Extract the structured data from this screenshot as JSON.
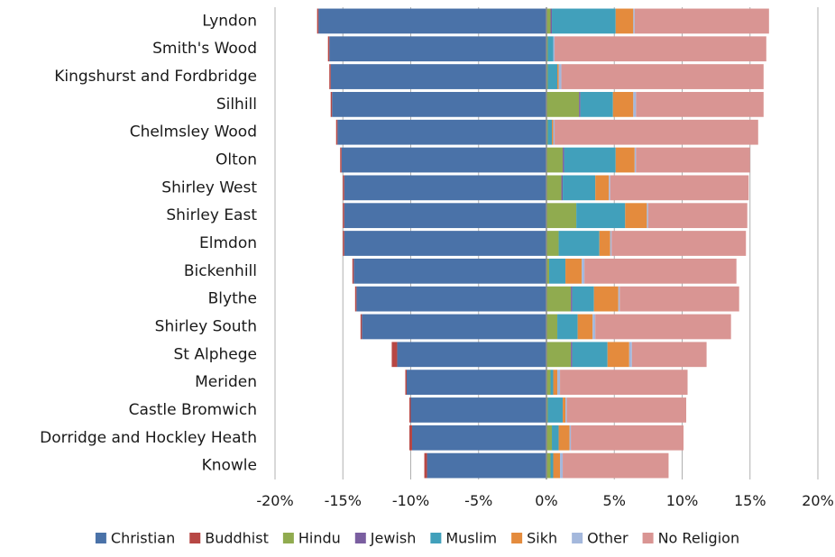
{
  "chart_data": {
    "type": "bar",
    "orientation": "horizontal",
    "stacked": true,
    "diverging": true,
    "title": "",
    "xlabel": "",
    "ylabel": "",
    "xlim": [
      -20,
      20
    ],
    "x_ticks": [
      -20,
      -15,
      -10,
      -5,
      0,
      5,
      10,
      15,
      20
    ],
    "x_tick_labels": [
      "-20%",
      "-15%",
      "-10%",
      "-5%",
      "0%",
      "5%",
      "10%",
      "15%",
      "20%"
    ],
    "grid": "vertical",
    "legend_position": "bottom",
    "categories": [
      "Lyndon",
      "Smith's Wood",
      "Kingshurst and Fordbridge",
      "Silhill",
      "Chelmsley Wood",
      "Olton",
      "Shirley West",
      "Shirley East",
      "Elmdon",
      "Bickenhill",
      "Blythe",
      "Shirley South",
      "St Alphege",
      "Meriden",
      "Castle Bromwich",
      "Dorridge and Hockley Heath",
      "Knowle"
    ],
    "series": [
      {
        "name": "Christian",
        "color": "#4a72a8",
        "side": "left",
        "values": [
          -16.8,
          -16.0,
          -15.9,
          -15.8,
          -15.4,
          -15.1,
          -14.9,
          -14.9,
          -14.9,
          -14.2,
          -14.0,
          -13.6,
          -11.0,
          -10.3,
          -10.0,
          -9.9,
          -8.8
        ]
      },
      {
        "name": "Buddhist",
        "color": "#b74744",
        "side": "left",
        "values": [
          -0.1,
          -0.1,
          -0.1,
          -0.1,
          -0.1,
          -0.1,
          -0.1,
          -0.1,
          -0.1,
          -0.1,
          -0.1,
          -0.1,
          -0.4,
          -0.1,
          -0.1,
          -0.2,
          -0.2
        ]
      },
      {
        "name": "Hindu",
        "color": "#90ab4f",
        "side": "right",
        "values": [
          0.3,
          0.1,
          0.1,
          2.4,
          0.1,
          1.2,
          1.1,
          2.2,
          0.9,
          0.2,
          1.8,
          0.8,
          1.8,
          0.3,
          0.1,
          0.4,
          0.3
        ]
      },
      {
        "name": "Jewish",
        "color": "#7a5ea0",
        "side": "right",
        "values": [
          0.1,
          0.0,
          0.0,
          0.1,
          0.0,
          0.1,
          0.1,
          0.0,
          0.0,
          0.0,
          0.1,
          0.0,
          0.1,
          0.0,
          0.0,
          0.0,
          0.0
        ]
      },
      {
        "name": "Muslim",
        "color": "#41a0bb",
        "side": "right",
        "values": [
          4.7,
          0.4,
          0.7,
          2.4,
          0.3,
          3.8,
          2.4,
          3.6,
          3.0,
          1.2,
          1.6,
          1.5,
          2.6,
          0.2,
          1.1,
          0.5,
          0.2
        ]
      },
      {
        "name": "Sikh",
        "color": "#e48b3d",
        "side": "right",
        "values": [
          1.3,
          0.0,
          0.1,
          1.5,
          0.1,
          1.4,
          1.0,
          1.6,
          0.8,
          1.2,
          1.8,
          1.1,
          1.6,
          0.3,
          0.2,
          0.8,
          0.5
        ]
      },
      {
        "name": "Other",
        "color": "#a4b8dc",
        "side": "right",
        "values": [
          0.1,
          0.1,
          0.2,
          0.2,
          0.1,
          0.1,
          0.1,
          0.1,
          0.1,
          0.2,
          0.1,
          0.2,
          0.2,
          0.2,
          0.1,
          0.1,
          0.2
        ]
      },
      {
        "name": "No Religion",
        "color": "#d99593",
        "side": "right",
        "values": [
          9.9,
          15.6,
          14.9,
          9.4,
          15.0,
          8.4,
          10.2,
          7.3,
          9.9,
          11.2,
          8.8,
          10.0,
          5.5,
          9.4,
          8.8,
          8.3,
          7.8
        ]
      }
    ]
  }
}
